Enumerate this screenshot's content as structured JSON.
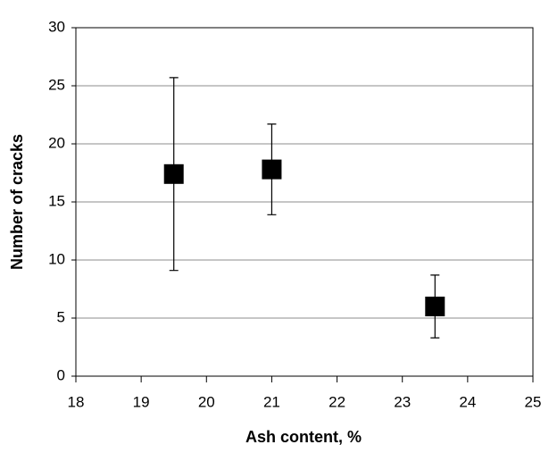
{
  "chart_data": {
    "type": "scatter",
    "x_label": "Ash content, %",
    "y_label": "Number of cracks",
    "series": [
      {
        "color": "#000000",
        "x": [
          19.5,
          21,
          23.5
        ],
        "values": [
          17.4,
          17.8,
          6.0
        ],
        "errors": [
          8.3,
          3.9,
          2.7
        ]
      }
    ],
    "xlim": [
      18,
      25
    ],
    "xticks": [
      18,
      19,
      20,
      21,
      22,
      23,
      24,
      25
    ],
    "ylim": [
      0,
      30
    ],
    "yticks": [
      0,
      5,
      10,
      15,
      20,
      25,
      30
    ],
    "grid": true
  }
}
